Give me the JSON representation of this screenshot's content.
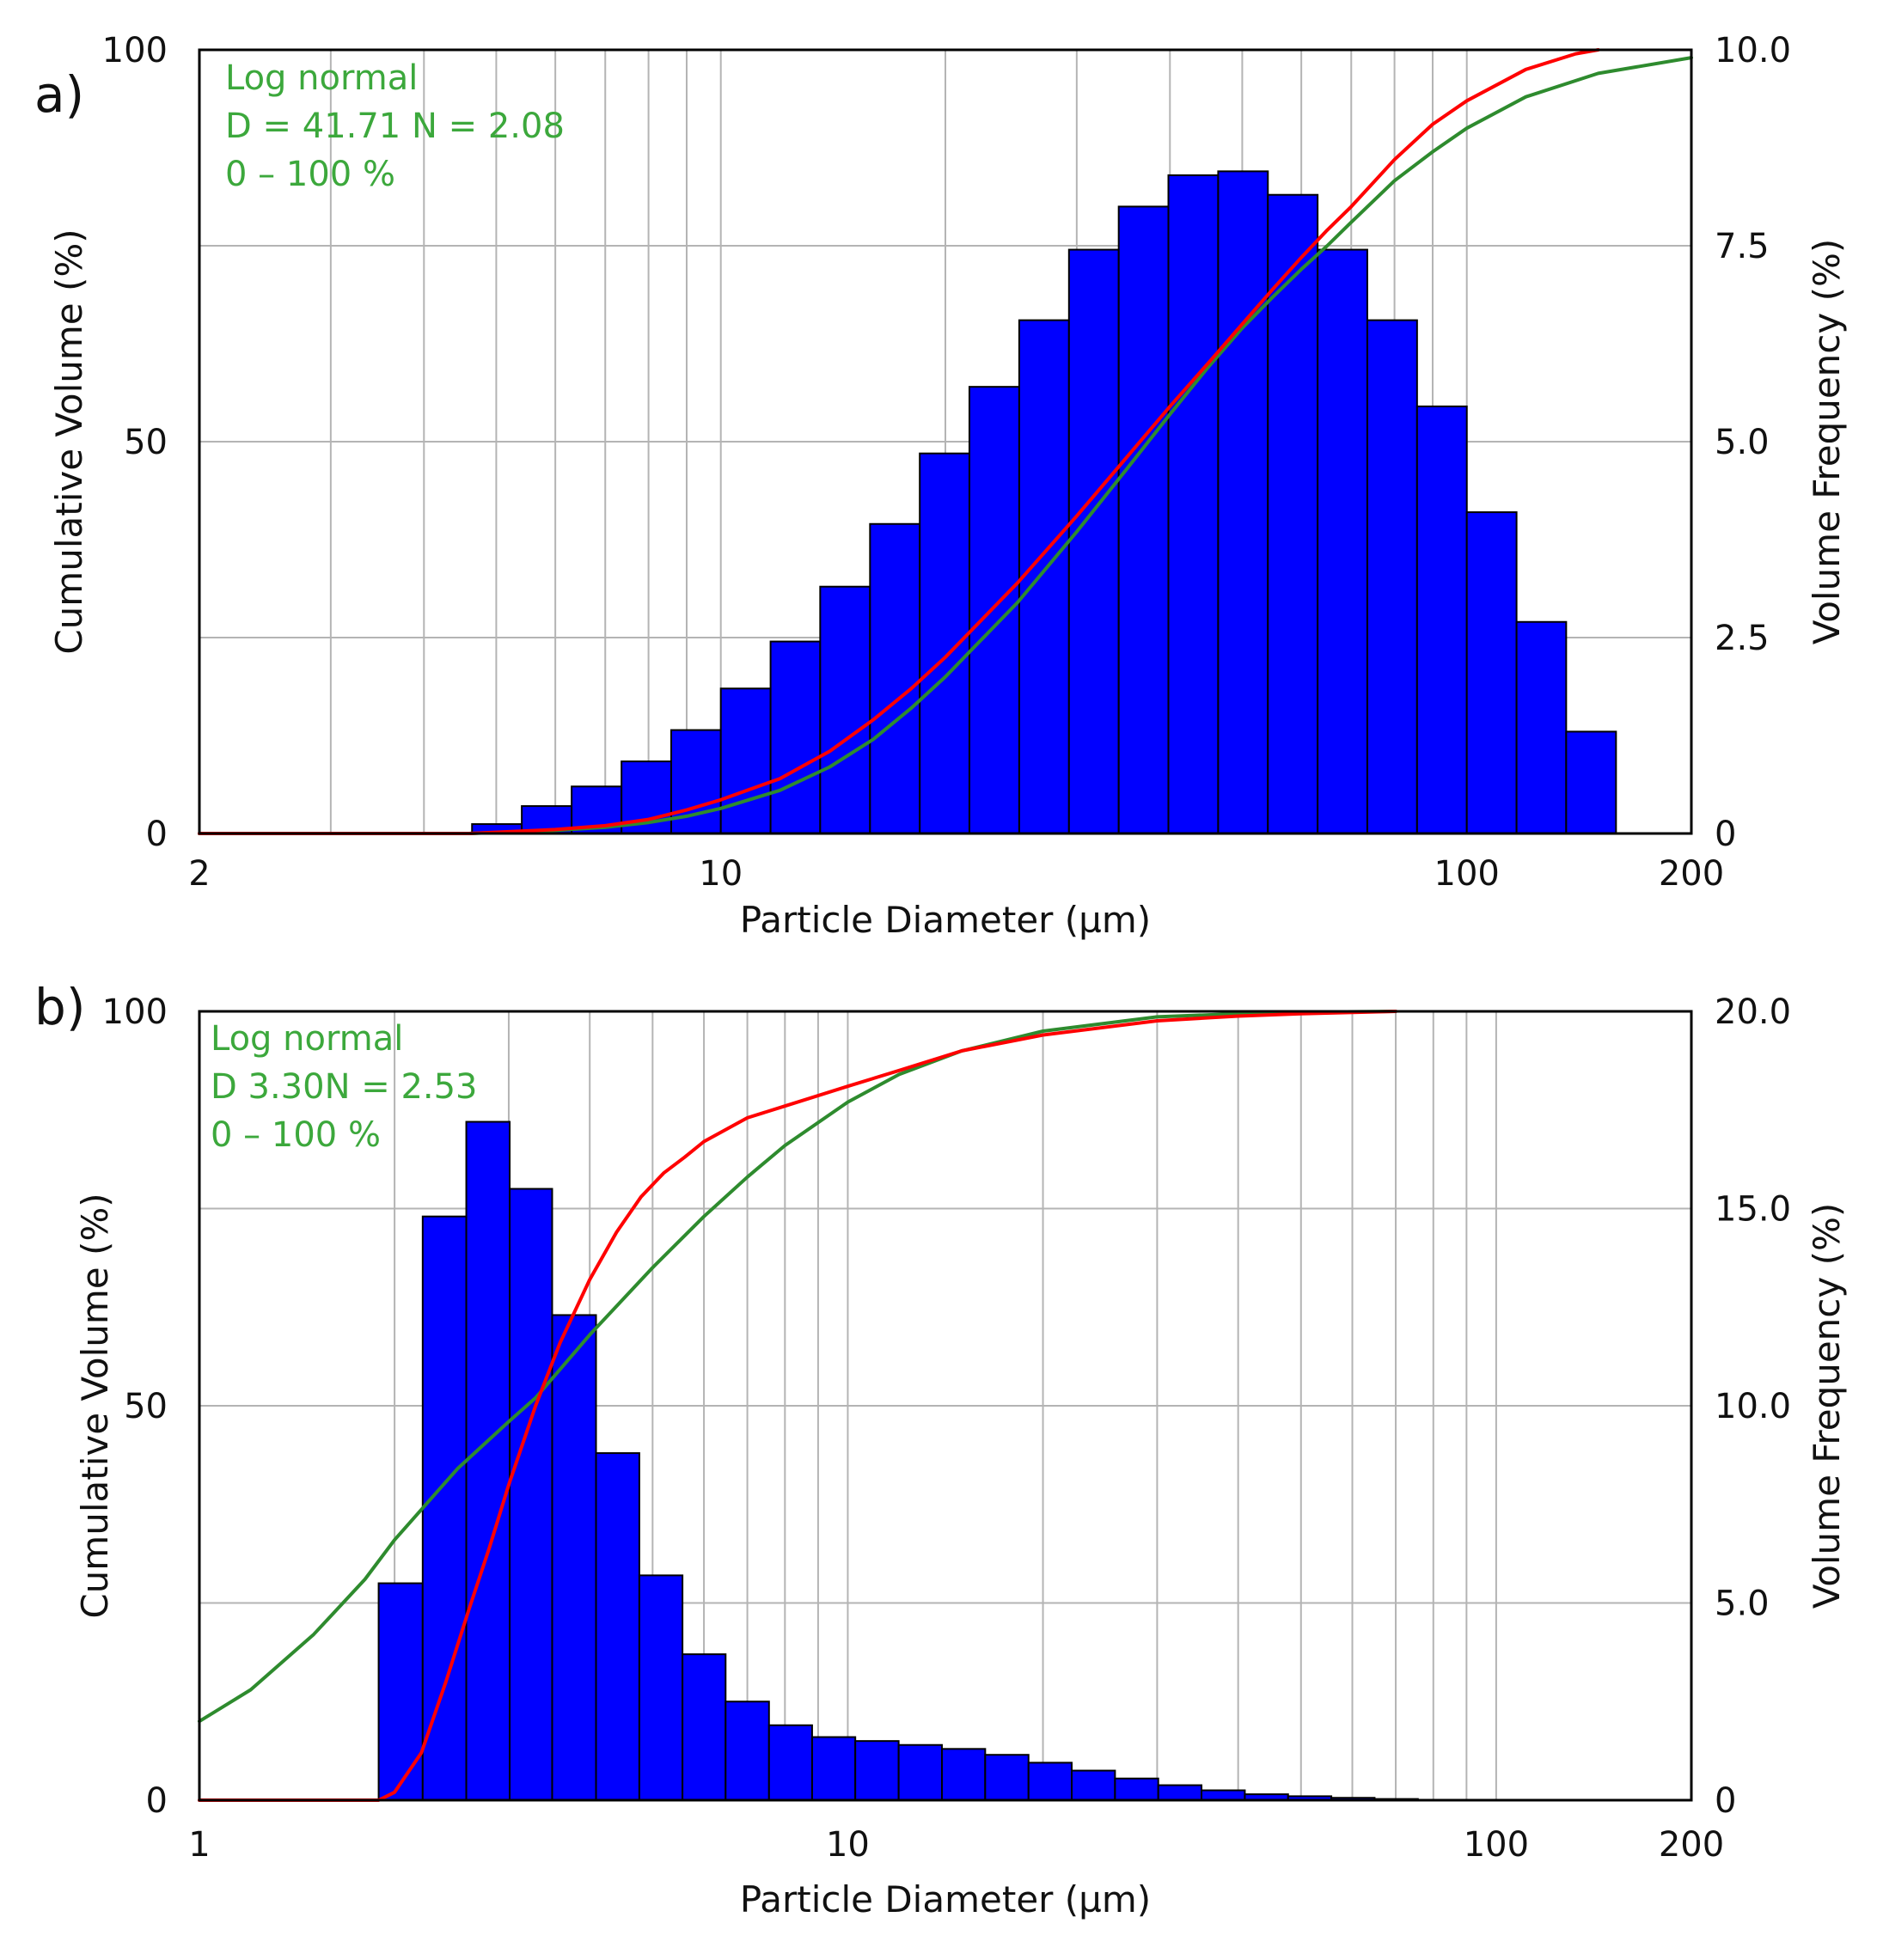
{
  "colors": {
    "bars": "#0000FF",
    "bar_edge": "#000000",
    "measured_curve": "#FF0000",
    "fit_curve": "#2E8B2E",
    "legend_text": "#3CA83C",
    "grid": "#B4B4B4",
    "frame": "#000000"
  },
  "chart_data": [
    {
      "id": "a",
      "panel_label": "a)",
      "type": "bar+line",
      "xscale": "log",
      "xlim": [
        2,
        200
      ],
      "xticks": [
        {
          "value": 2,
          "label": "2"
        },
        {
          "value": 10,
          "label": "10"
        },
        {
          "value": 100,
          "label": "100"
        },
        {
          "value": 200,
          "label": "200"
        }
      ],
      "xlabel": "Particle Diameter (µm)",
      "ylabel_left": "Cumulative Volume (%)",
      "ylabel_right": "Volume Frequency (%)",
      "ylim_left": [
        0,
        100
      ],
      "yticks_left": [
        {
          "value": 0,
          "label": "0"
        },
        {
          "value": 50,
          "label": "50"
        },
        {
          "value": 100,
          "label": "100"
        }
      ],
      "ylim_right": [
        0,
        10
      ],
      "yticks_right": [
        {
          "value": 0,
          "label": "0"
        },
        {
          "value": 2.5,
          "label": "2.5"
        },
        {
          "value": 5,
          "label": "5.0"
        },
        {
          "value": 7.5,
          "label": "7.5"
        },
        {
          "value": 10,
          "label": "10.0"
        }
      ],
      "grid_x": [
        3,
        4,
        5,
        6,
        7,
        8,
        9,
        10,
        20,
        30,
        40,
        50,
        60,
        70,
        80,
        90,
        100
      ],
      "grid_y_left": [
        25,
        50,
        75
      ],
      "legend": [
        "Log normal",
        "D = 41.71 N = 2.08",
        "0 – 100 %"
      ],
      "histogram": {
        "bin_edges": [
          4.64,
          5.41,
          6.31,
          7.36,
          8.58,
          10.0,
          11.66,
          13.59,
          15.85,
          18.48,
          21.54,
          25.12,
          29.29,
          34.15,
          39.81,
          46.42,
          54.12,
          63.1,
          73.56,
          85.77,
          100.0,
          116.6,
          135.9,
          158.5
        ],
        "values": [
          0.12,
          0.35,
          0.6,
          0.92,
          1.32,
          1.85,
          2.45,
          3.15,
          3.95,
          4.85,
          5.7,
          6.55,
          7.45,
          8.0,
          8.4,
          8.45,
          8.15,
          7.45,
          6.55,
          5.45,
          4.1,
          2.7,
          1.3
        ]
      },
      "curves": [
        {
          "name": "Measured cumulative",
          "color_key": "measured_curve",
          "x": [
            2,
            4.6,
            6,
            7,
            8,
            9,
            10,
            12,
            14,
            16,
            18,
            20,
            25,
            30,
            35,
            40,
            45,
            50,
            55,
            60,
            65,
            70,
            80,
            90,
            100,
            120,
            140,
            150
          ],
          "y": [
            0,
            0,
            0.5,
            1,
            1.8,
            3,
            4.3,
            7,
            10.5,
            14.5,
            18.5,
            22.5,
            32,
            40.5,
            48,
            54.5,
            60,
            65,
            69.5,
            73.5,
            77,
            80,
            86,
            90.5,
            93.5,
            97.5,
            99.5,
            100
          ]
        },
        {
          "name": "Log normal fit",
          "color_key": "fit_curve",
          "x": [
            2,
            4.6,
            6,
            7,
            8,
            9,
            10,
            12,
            14,
            16,
            18,
            20,
            25,
            30,
            35,
            40,
            45,
            50,
            55,
            60,
            65,
            70,
            80,
            90,
            100,
            120,
            150,
            200
          ],
          "y": [
            0,
            0,
            0.4,
            0.8,
            1.4,
            2.2,
            3.2,
            5.5,
            8.5,
            12,
            16,
            20,
            29.5,
            38.5,
            46.5,
            53.5,
            59.5,
            64.5,
            68.5,
            72,
            75,
            78,
            83.3,
            87,
            90,
            94,
            97,
            99
          ]
        }
      ]
    },
    {
      "id": "b",
      "panel_label": "b)",
      "type": "bar+line",
      "xscale": "log",
      "xlim": [
        1,
        200
      ],
      "xticks": [
        {
          "value": 1,
          "label": "1"
        },
        {
          "value": 10,
          "label": "10"
        },
        {
          "value": 100,
          "label": "100"
        },
        {
          "value": 200,
          "label": "200"
        }
      ],
      "xlabel": "Particle Diameter (µm)",
      "ylabel_left": "Cumulative Volume (%)",
      "ylabel_right": "Volume Frequency (%)",
      "ylim_left": [
        0,
        100
      ],
      "yticks_left": [
        {
          "value": 0,
          "label": "0"
        },
        {
          "value": 50,
          "label": "50"
        },
        {
          "value": 100,
          "label": "100"
        }
      ],
      "ylim_right": [
        0,
        20
      ],
      "yticks_right": [
        {
          "value": 0,
          "label": "0"
        },
        {
          "value": 5,
          "label": "5.0"
        },
        {
          "value": 10,
          "label": "10.0"
        },
        {
          "value": 15,
          "label": "15.0"
        },
        {
          "value": 20,
          "label": "20.0"
        }
      ],
      "grid_x": [
        2,
        3,
        4,
        5,
        6,
        7,
        8,
        9,
        10,
        20,
        30,
        40,
        50,
        60,
        70,
        80,
        90,
        100
      ],
      "grid_y_left": [
        25,
        50,
        75
      ],
      "legend": [
        "Log normal",
        "D 3.30N = 2.53",
        "0 – 100 %"
      ],
      "histogram": {
        "bin_edges": [
          1.89,
          2.21,
          2.58,
          3.01,
          3.5,
          4.09,
          4.77,
          5.56,
          6.48,
          7.56,
          8.81,
          10.27,
          11.98,
          13.97,
          16.29,
          19.0,
          22.15,
          25.83,
          30.12,
          35.12,
          40.96,
          47.76,
          55.69,
          64.94,
          75.73,
          88.31
        ],
        "values": [
          5.5,
          14.8,
          17.2,
          15.5,
          12.3,
          8.8,
          5.7,
          3.7,
          2.5,
          1.9,
          1.6,
          1.5,
          1.4,
          1.3,
          1.15,
          0.95,
          0.75,
          0.55,
          0.38,
          0.25,
          0.15,
          0.1,
          0.06,
          0.03,
          0.01
        ]
      },
      "curves": [
        {
          "name": "Measured cumulative",
          "color_key": "measured_curve",
          "x": [
            1,
            1.89,
            2.0,
            2.2,
            2.4,
            2.6,
            2.8,
            3.0,
            3.3,
            3.6,
            4.0,
            4.4,
            4.8,
            5.2,
            5.6,
            6.0,
            7.0,
            8.0,
            10,
            12,
            15,
            20,
            30,
            40,
            50,
            70
          ],
          "y": [
            0,
            0,
            1,
            6,
            15,
            24,
            32,
            40,
            50,
            58,
            66,
            72,
            76.5,
            79.5,
            81.5,
            83.5,
            86.5,
            88,
            90.5,
            92.5,
            95,
            97,
            98.8,
            99.4,
            99.7,
            100
          ]
        },
        {
          "name": "Log normal fit",
          "color_key": "fit_curve",
          "x": [
            1,
            1.2,
            1.5,
            1.8,
            2.0,
            2.5,
            3.0,
            3.3,
            4.0,
            5.0,
            6.0,
            7.0,
            8.0,
            10,
            12,
            15,
            20,
            30,
            40,
            50,
            70
          ],
          "y": [
            10,
            14,
            21,
            28,
            33,
            42,
            48,
            51,
            59,
            67.5,
            74,
            79,
            83,
            88.5,
            92,
            95,
            97.5,
            99.3,
            99.7,
            99.9,
            100
          ]
        }
      ]
    }
  ]
}
